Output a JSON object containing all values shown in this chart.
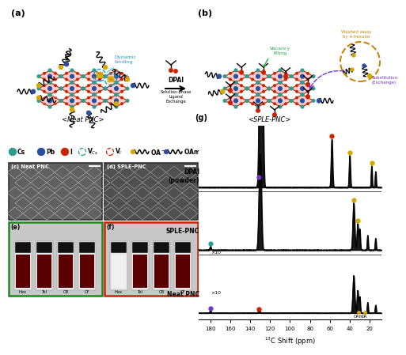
{
  "bg_color": "#ffffff",
  "panel_a_label": "(a)",
  "panel_b_label": "(b)",
  "panel_c_label": "(c) Neat PNC",
  "panel_d_label": "(d) SPLE-PNC",
  "panel_e_label": "(e)",
  "panel_f_label": "(f)",
  "panel_g_label": "(g)",
  "neat_pnc_label": "<Neat PNC>",
  "sple_pnc_label": "<SPLE-PNC>",
  "dynamic_binding_color": "#00aadd",
  "vacancy_filling_color": "#22aa44",
  "washed_away_color": "#c8860a",
  "substitution_color": "#7733cc",
  "crystal_face_color": "#ffcccc",
  "crystal_edge_color": "#cc2200",
  "crystal_cs_color": "#2a9d8f",
  "crystal_pb_color": "#2b4ea3",
  "vial_labels": [
    "Hex",
    "Tol",
    "CB",
    "CF"
  ],
  "green_box_color": "#228822",
  "red_box_color": "#cc2200",
  "nmr_xticks": [
    180,
    160,
    140,
    120,
    100,
    80,
    60,
    40,
    20
  ]
}
